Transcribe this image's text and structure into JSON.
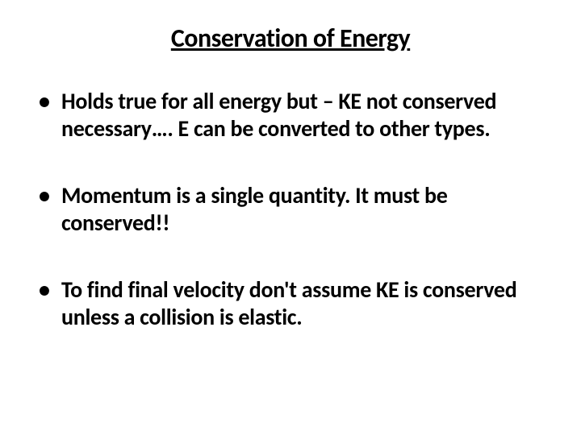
{
  "slide": {
    "title": "Conservation of Energy",
    "bullets": [
      "Holds true for all energy but – KE not conserved necessary…. E can be converted to other types.",
      "Momentum is a single quantity. It must be conserved!!",
      "To find final velocity don't assume KE is conserved unless a collision is elastic."
    ],
    "styling": {
      "background_color": "#ffffff",
      "text_color": "#000000",
      "title_fontsize": 32,
      "title_fontweight": "bold",
      "title_underline": true,
      "title_align": "center",
      "bullet_fontsize": 28,
      "bullet_fontweight": "bold",
      "font_family": "Calibri",
      "bullet_marker": "•",
      "bullet_spacing": 50
    }
  }
}
